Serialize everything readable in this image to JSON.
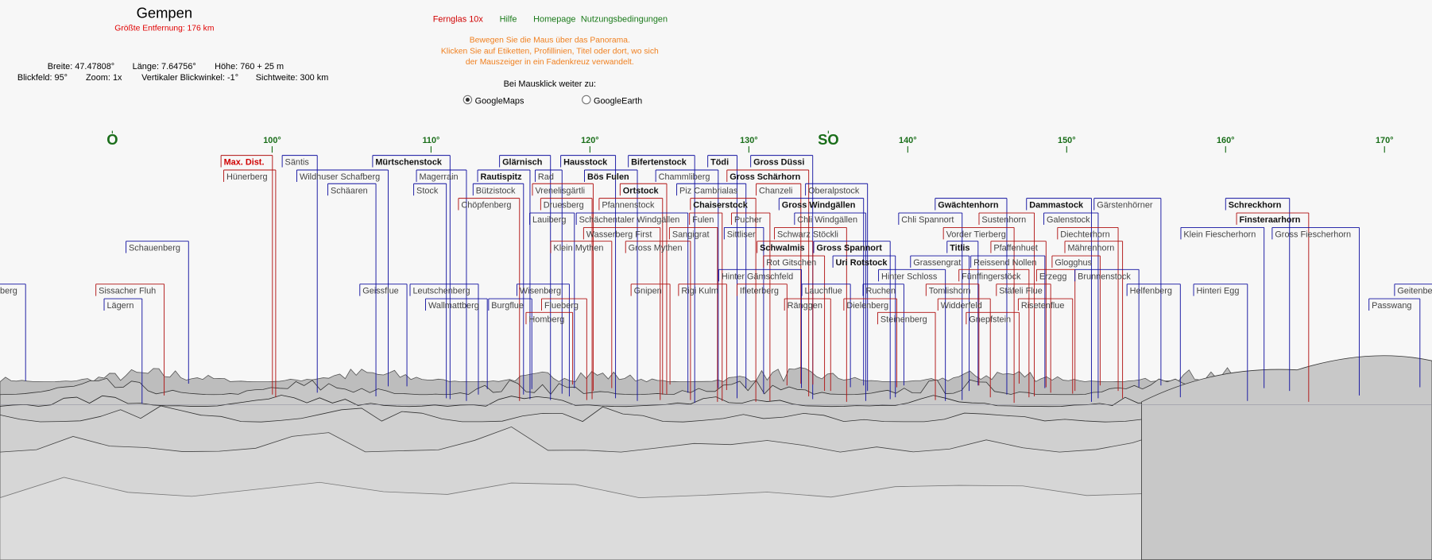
{
  "header": {
    "title": "Gempen",
    "max_distance": "Größte Entfernung: 176 km"
  },
  "info": [
    "Breite: 47.47808°",
    "Länge: 7.64756°",
    "Höhe: 760 + 25 m",
    "Blickfeld: 95°",
    "Zoom: 1x",
    "Vertikaler Blickwinkel: -1°",
    "Sichtweite: 300 km"
  ],
  "nav": [
    "Fernglas 10x",
    "Hilfe",
    "Homepage",
    "Nutzungsbedingungen"
  ],
  "instructions": [
    "Bewegen Sie die Maus über das Panorama.",
    "Klicken Sie auf Etiketten, Profillinien, Titel oder dort, wo sich",
    "der Mauszeiger in ein Fadenkreuz verwandelt."
  ],
  "click_prompt": "Bei Mausklick weiter zu:",
  "options": [
    {
      "label": "GoogleMaps",
      "checked": true
    },
    {
      "label": "GoogleEarth",
      "checked": false
    }
  ],
  "compass": [
    "O",
    "100°",
    "110°",
    "120°",
    "130°",
    "SO",
    "140°",
    "150°",
    "160°",
    "170°"
  ],
  "peaks": [
    "Max. Dist.",
    "Säntis",
    "Mürtschenstock",
    "Glärnisch",
    "Hausstock",
    "Bifertenstock",
    "Tödi",
    "Gross Düssi",
    "Hünerberg",
    "Wildhuser Schafberg",
    "Magerrain",
    "Rautispitz",
    "Rad",
    "Bös Fulen",
    "Chammliberg",
    "Gross Schärhorn",
    "Schäaren",
    "Stock",
    "Bützistock",
    "Vrenelisgärtli",
    "Ortstock",
    "Piz Cambrialas",
    "Chanzeli",
    "Oberalpstock",
    "Chöpfenberg",
    "Druesberg",
    "Pfannenstock",
    "Chaiserstock",
    "Gross Windgällen",
    "Gwächtenhorn",
    "Dammastock",
    "Gärstenhörner",
    "Schreckhorn",
    "Lauiberg",
    "Schächentaler Windgällen",
    "Fulen",
    "Pucher",
    "Chli Windgällen",
    "Chli Spannort",
    "Sustenhorn",
    "Galenstock",
    "Finsteraarhorn",
    "Wasserberg First",
    "Sangigrat",
    "Sittliser",
    "Schwarz Stöckli",
    "Vorder Tierberg",
    "Diechterhorn",
    "Klein Fiescherhorn",
    "Gross Fiescherhorn",
    "Schauenberg",
    "Klein Mythen",
    "Gross Mythen",
    "Schwalmis",
    "Gross Spannort",
    "Titlis",
    "Pfaffenhuet",
    "Mährenhorn",
    "Rot Gitschen",
    "Uri Rotstock",
    "Grassengrat",
    "Reissend Nollen",
    "Glogghus",
    "Hinter Gämschfeld",
    "Hinter Schloss",
    "Fünffingerstöck",
    "Erzegg",
    "Brunnenstock",
    "berg",
    "Sissacher Fluh",
    "Geissflue",
    "Leutschenberg",
    "Wisenberg",
    "Gnipen",
    "Rigi Kulm",
    "Ifleterberg",
    "Lauchflue",
    "Ruchen",
    "Tomlishorn",
    "Stäfeli Flue",
    "Helfenberg",
    "Hinteri Egg",
    "Geitenberg",
    "Lägern",
    "Wallmattberg",
    "Burgflue",
    "Flueberg",
    "Ränggen",
    "Dielenberg",
    "Widderfeld",
    "Risetenflue",
    "Passwang",
    "Homberg",
    "Steinenberg",
    "Gnepfstein"
  ]
}
